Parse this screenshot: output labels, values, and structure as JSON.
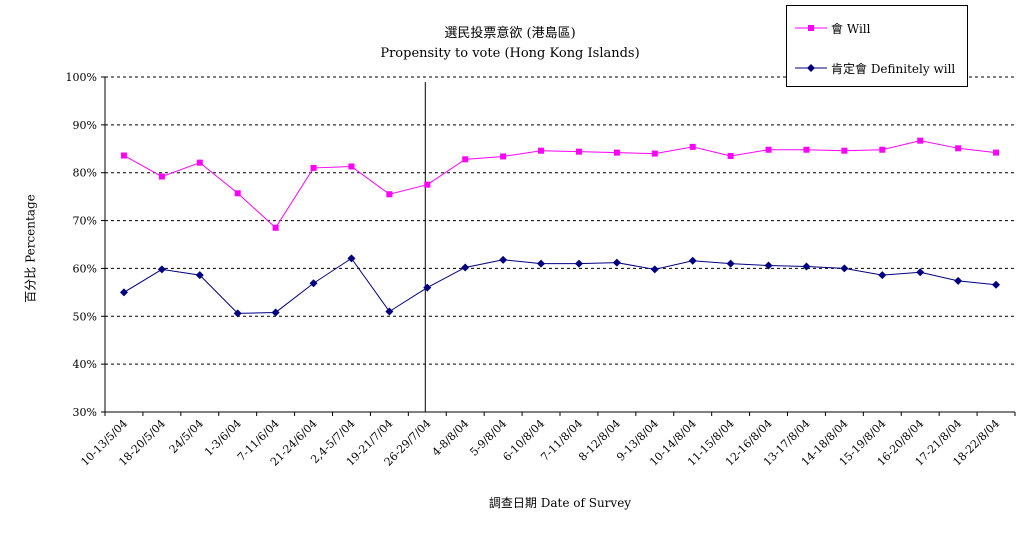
{
  "chart_data": {
    "type": "line",
    "title": "選民投票意欲 (港島區)",
    "subtitle": "Propensity to vote (Hong Kong Islands)",
    "xlabel": "調查日期 Date of Survey",
    "ylabel": "百分比 Percentage",
    "ylim": [
      30,
      100
    ],
    "yticks": [
      "30%",
      "40%",
      "50%",
      "60%",
      "70%",
      "80%",
      "90%",
      "100%"
    ],
    "grid": true,
    "legend_position": "top-right",
    "categories": [
      "10-13/5/04",
      "18-20/5/04",
      "24/5/04",
      "1-3/6/04",
      "7-11/6/04",
      "21-24/6/04",
      "2,4-5/7/04",
      "19-21/7/04",
      "26-29/7/04",
      "4-8/8/04",
      "5-9/8/04",
      "6-10/8/04",
      "7-11/8/04",
      "8-12/8/04",
      "9-13/8/04",
      "10-14/8/04",
      "11-15/8/04",
      "12-16/8/04",
      "13-17/8/04",
      "14-18/8/04",
      "15-19/8/04",
      "16-20/8/04",
      "17-21/8/04",
      "18-22/8/04"
    ],
    "series": [
      {
        "name": "會 Will",
        "color": "#ff00ff",
        "marker": "square",
        "values": [
          83.6,
          79.2,
          82.1,
          75.7,
          68.5,
          81.0,
          81.3,
          75.5,
          77.5,
          82.8,
          83.4,
          84.6,
          84.4,
          84.2,
          84.0,
          85.4,
          83.5,
          84.8,
          84.8,
          84.6,
          84.8,
          86.7,
          85.1,
          84.2
        ]
      },
      {
        "name": "肯定會 Definitely will",
        "color": "#000080",
        "marker": "diamond",
        "values": [
          55.0,
          59.8,
          58.6,
          50.6,
          50.8,
          56.9,
          62.1,
          51.0,
          56.0,
          60.2,
          61.8,
          61.0,
          61.0,
          61.2,
          59.8,
          61.6,
          61.0,
          60.6,
          60.4,
          60.0,
          58.6,
          59.2,
          57.4,
          56.6
        ]
      }
    ]
  }
}
